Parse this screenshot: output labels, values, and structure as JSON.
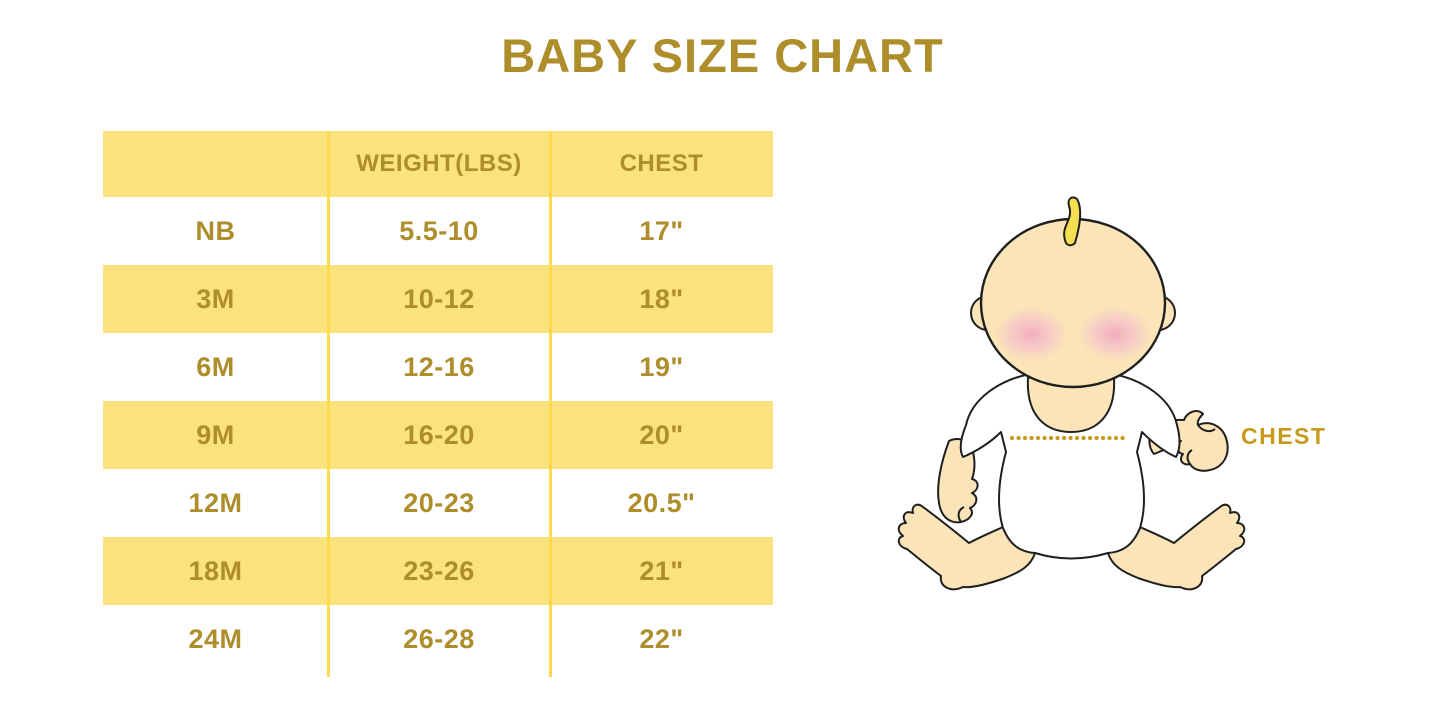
{
  "title": "BABY SIZE CHART",
  "colors": {
    "gold_text": "#AE8D2B",
    "row_yellow": "#FAE27D",
    "divider_yellow": "#FFD952",
    "accent_gold": "#C89A1C",
    "baby_skin": "#FAE4B8",
    "baby_hair": "#F5DF51",
    "baby_blush": "#F2A9BE"
  },
  "chart_data": {
    "type": "table",
    "title": "BABY SIZE CHART",
    "columns": [
      "",
      "WEIGHT(LBS)",
      "CHEST"
    ],
    "rows": [
      [
        "NB",
        "5.5-10",
        "17\""
      ],
      [
        "3M",
        "10-12",
        "18\""
      ],
      [
        "6M",
        "12-16",
        "19\""
      ],
      [
        "9M",
        "16-20",
        "20\""
      ],
      [
        "12M",
        "20-23",
        "20.5\""
      ],
      [
        "18M",
        "23-26",
        "21\""
      ],
      [
        "24M",
        "26-28",
        "22\""
      ]
    ],
    "layout_hints": {
      "striping": "header yellow, then rows alternate white/yellow",
      "grid": "two yellow vertical column dividers, no horizontal borders"
    }
  },
  "illustration": {
    "description": "seated cartoon baby in white onesie with dotted chest measurement line",
    "chest_label": "CHEST"
  }
}
